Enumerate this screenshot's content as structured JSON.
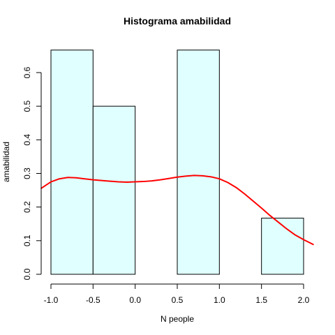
{
  "chart_data": {
    "type": "bar",
    "subtype": "histogram-with-density",
    "title": "Histograma  amabilidad",
    "xlabel": "N people",
    "ylabel": "amabilidad",
    "xlim": [
      -1.15,
      2.15
    ],
    "ylim": [
      0,
      0.7
    ],
    "x_ticks": [
      -1.0,
      -0.5,
      0.0,
      0.5,
      1.0,
      1.5,
      2.0
    ],
    "x_tick_labels": [
      "-1.0",
      "-0.5",
      "0.0",
      "0.5",
      "1.0",
      "1.5",
      "2.0"
    ],
    "y_ticks": [
      0.0,
      0.1,
      0.2,
      0.3,
      0.4,
      0.5,
      0.6
    ],
    "y_tick_labels": [
      "0.0",
      "0.1",
      "0.2",
      "0.3",
      "0.4",
      "0.5",
      "0.6"
    ],
    "bins": [
      {
        "from": -1.0,
        "to": -0.5,
        "density": 0.667
      },
      {
        "from": -0.5,
        "to": 0.0,
        "density": 0.5
      },
      {
        "from": 0.0,
        "to": 0.5,
        "density": 0.0
      },
      {
        "from": 0.5,
        "to": 1.0,
        "density": 0.667
      },
      {
        "from": 1.0,
        "to": 1.5,
        "density": 0.0
      },
      {
        "from": 1.5,
        "to": 2.0,
        "density": 0.167
      }
    ],
    "density_curve": {
      "x": [
        -1.12,
        -1.0,
        -0.9,
        -0.8,
        -0.7,
        -0.6,
        -0.5,
        -0.4,
        -0.3,
        -0.2,
        -0.1,
        0.0,
        0.1,
        0.2,
        0.3,
        0.4,
        0.5,
        0.6,
        0.7,
        0.8,
        0.9,
        1.0,
        1.1,
        1.2,
        1.3,
        1.4,
        1.5,
        1.6,
        1.7,
        1.8,
        1.9,
        2.0,
        2.12
      ],
      "y": [
        0.255,
        0.275,
        0.284,
        0.288,
        0.287,
        0.284,
        0.281,
        0.279,
        0.277,
        0.275,
        0.274,
        0.275,
        0.276,
        0.278,
        0.281,
        0.285,
        0.289,
        0.292,
        0.294,
        0.293,
        0.29,
        0.284,
        0.273,
        0.258,
        0.239,
        0.218,
        0.197,
        0.175,
        0.155,
        0.135,
        0.117,
        0.103,
        0.088
      ]
    },
    "colors": {
      "bar_fill": "#e0ffff",
      "bar_stroke": "#000000",
      "curve": "#ff0000",
      "axis": "#000000"
    },
    "grid": false
  }
}
